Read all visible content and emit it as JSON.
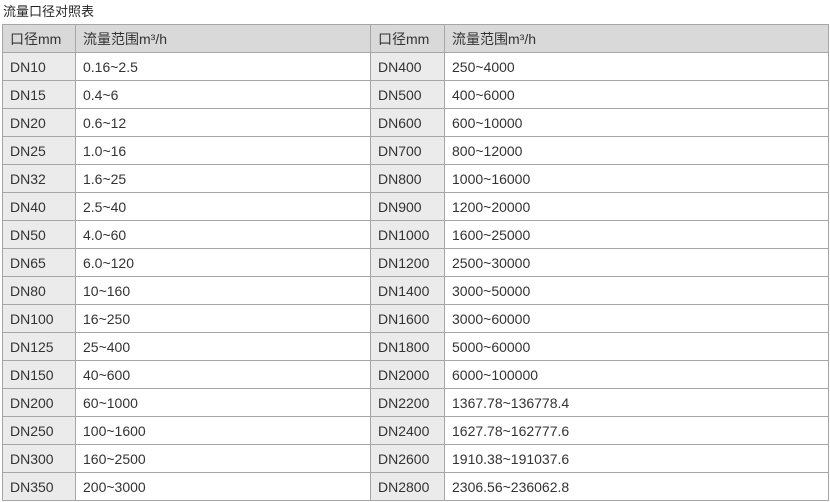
{
  "page": {
    "title": "流量口径对照表"
  },
  "colors": {
    "header_bg": "#d9d9d9",
    "dn_column_bg": "#ebebeb",
    "range_column_bg": "#ffffff",
    "border": "#a6a6a6",
    "text": "#333333"
  },
  "table": {
    "headers": [
      "口径mm",
      "流量范围m³/h",
      "口径mm",
      "流量范围m³/h"
    ],
    "rows": [
      {
        "dn_left": "DN10",
        "range_left": "0.16~2.5",
        "dn_right": "DN400",
        "range_right": "250~4000"
      },
      {
        "dn_left": "DN15",
        "range_left": "0.4~6",
        "dn_right": "DN500",
        "range_right": "400~6000"
      },
      {
        "dn_left": "DN20",
        "range_left": "0.6~12",
        "dn_right": "DN600",
        "range_right": "600~10000"
      },
      {
        "dn_left": "DN25",
        "range_left": "1.0~16",
        "dn_right": "DN700",
        "range_right": "800~12000"
      },
      {
        "dn_left": "DN32",
        "range_left": "1.6~25",
        "dn_right": "DN800",
        "range_right": "1000~16000"
      },
      {
        "dn_left": "DN40",
        "range_left": "2.5~40",
        "dn_right": "DN900",
        "range_right": "1200~20000"
      },
      {
        "dn_left": "DN50",
        "range_left": "4.0~60",
        "dn_right": "DN1000",
        "range_right": "1600~25000"
      },
      {
        "dn_left": "DN65",
        "range_left": "6.0~120",
        "dn_right": "DN1200",
        "range_right": "2500~30000"
      },
      {
        "dn_left": "DN80",
        "range_left": "10~160",
        "dn_right": "DN1400",
        "range_right": "3000~50000"
      },
      {
        "dn_left": "DN100",
        "range_left": "16~250",
        "dn_right": "DN1600",
        "range_right": "3000~60000"
      },
      {
        "dn_left": "DN125",
        "range_left": "25~400",
        "dn_right": "DN1800",
        "range_right": "5000~60000"
      },
      {
        "dn_left": "DN150",
        "range_left": "40~600",
        "dn_right": "DN2000",
        "range_right": "6000~100000"
      },
      {
        "dn_left": "DN200",
        "range_left": "60~1000",
        "dn_right": "DN2200",
        "range_right": "1367.78~136778.4"
      },
      {
        "dn_left": "DN250",
        "range_left": "100~1600",
        "dn_right": "DN2400",
        "range_right": "1627.78~162777.6"
      },
      {
        "dn_left": "DN300",
        "range_left": "160~2500",
        "dn_right": "DN2600",
        "range_right": "1910.38~191037.6"
      },
      {
        "dn_left": "DN350",
        "range_left": "200~3000",
        "dn_right": "DN2800",
        "range_right": "2306.56~236062.8"
      }
    ]
  }
}
